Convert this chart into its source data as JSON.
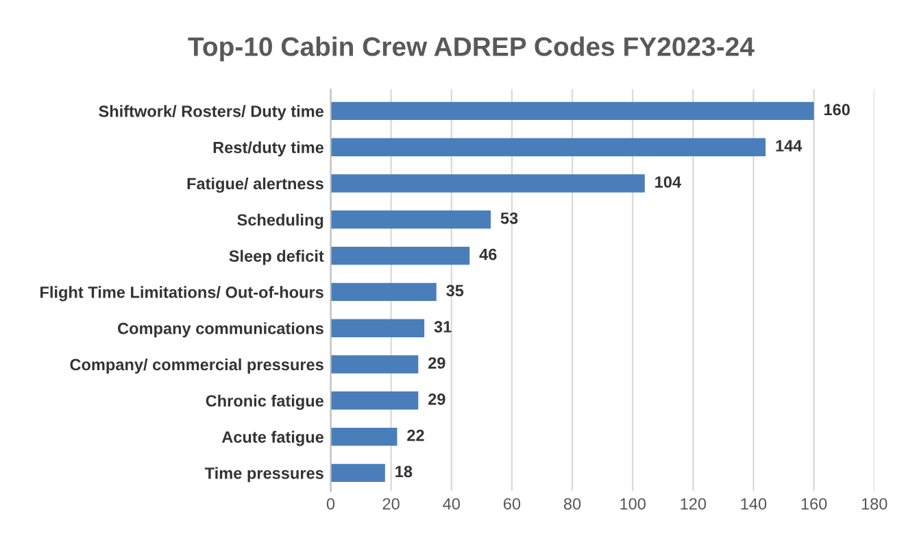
{
  "chart_data": {
    "type": "bar",
    "orientation": "horizontal",
    "title": "Top-10 Cabin Crew ADREP Codes FY2023-24",
    "categories": [
      "Shiftwork/ Rosters/ Duty time",
      "Rest/duty time",
      "Fatigue/ alertness",
      "Scheduling",
      "Sleep deficit",
      "Flight Time Limitations/ Out-of-hours",
      "Company communications",
      "Company/ commercial pressures",
      "Chronic fatigue",
      "Acute fatigue",
      "Time pressures"
    ],
    "values": [
      160,
      144,
      104,
      53,
      46,
      35,
      31,
      29,
      29,
      22,
      18
    ],
    "color": "#4a7ebb",
    "xlim": [
      0,
      180
    ],
    "xticks": [
      0,
      20,
      40,
      60,
      80,
      100,
      120,
      140,
      160,
      180
    ],
    "grid": "x",
    "data_labels": true,
    "legend": false
  }
}
